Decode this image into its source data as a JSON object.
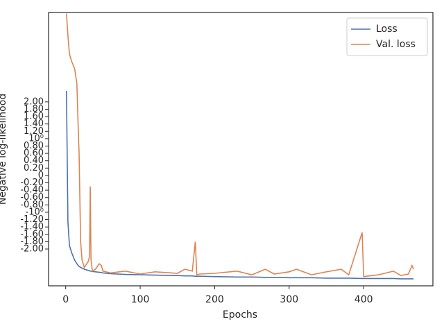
{
  "chart_data": {
    "type": "line",
    "xlabel": "Epochs",
    "ylabel": "Negative log-likelihood",
    "x": [
      1,
      3,
      5,
      8,
      12,
      15,
      17,
      18,
      20,
      22,
      25,
      30,
      32,
      33,
      34,
      36,
      40,
      45,
      48,
      50,
      60,
      80,
      100,
      120,
      150,
      160,
      170,
      174,
      176,
      180,
      200,
      230,
      250,
      268,
      280,
      300,
      310,
      330,
      350,
      370,
      380,
      398,
      400,
      420,
      440,
      450,
      460,
      465,
      467
    ],
    "series": [
      {
        "name": "Loss",
        "color": "#4c72b0",
        "values": [
          2.3,
          -1.26,
          -1.9,
          -2.1,
          -2.3,
          -2.4,
          -2.45,
          -2.47,
          -2.5,
          -2.52,
          -2.55,
          -2.58,
          -2.59,
          -2.6,
          -2.6,
          -2.61,
          -2.62,
          -2.63,
          -2.64,
          -2.65,
          -2.67,
          -2.69,
          -2.7,
          -2.71,
          -2.72,
          -2.73,
          -2.73,
          -2.74,
          -2.74,
          -2.74,
          -2.75,
          -2.76,
          -2.76,
          -2.77,
          -2.77,
          -2.78,
          -2.78,
          -2.78,
          -2.79,
          -2.79,
          -2.79,
          -2.8,
          -2.8,
          -2.8,
          -2.8,
          -2.81,
          -2.81,
          -2.81,
          -2.81
        ]
      },
      {
        "name": "Val. loss",
        "color": "#dd8452",
        "values": [
          4.4,
          3.8,
          3.3,
          3.1,
          2.9,
          2.5,
          1.2,
          0.6,
          -1.8,
          -2.3,
          -2.5,
          -2.35,
          -2.2,
          -0.3,
          -2.3,
          -2.6,
          -2.55,
          -2.4,
          -2.45,
          -2.6,
          -2.65,
          -2.6,
          -2.68,
          -2.62,
          -2.66,
          -2.55,
          -2.6,
          -1.8,
          -2.7,
          -2.68,
          -2.66,
          -2.6,
          -2.7,
          -2.55,
          -2.68,
          -2.62,
          -2.55,
          -2.7,
          -2.62,
          -2.55,
          -2.7,
          -1.55,
          -2.75,
          -2.7,
          -2.6,
          -2.72,
          -2.68,
          -2.45,
          -2.55
        ]
      }
    ],
    "xlim": [
      -23,
      493
    ],
    "ylim": [
      -3.0,
      4.43
    ],
    "xticks": [
      0,
      100,
      200,
      300,
      400
    ],
    "yticks": [
      {
        "value": -2,
        "label": "-2.00"
      },
      {
        "value": -1.8,
        "label": "-1.80"
      },
      {
        "value": -1.6,
        "label": "-1.60"
      },
      {
        "value": -1.4,
        "label": "-1.40"
      },
      {
        "value": -1.2,
        "label": "-1.20"
      },
      {
        "value": -1,
        "label": "-10⁰"
      },
      {
        "value": -0.8,
        "label": "-0.80"
      },
      {
        "value": -0.6,
        "label": "-0.60"
      },
      {
        "value": -0.4,
        "label": "-0.40"
      },
      {
        "value": -0.2,
        "label": "-0.20"
      },
      0,
      {
        "value": 0.2,
        "label": "0.20"
      },
      {
        "value": 0.4,
        "label": "0.40"
      },
      {
        "value": 0.6,
        "label": "0.60"
      },
      {
        "value": 0.8,
        "label": "0.80"
      },
      {
        "value": 1,
        "label": "10⁰"
      },
      {
        "value": 1.2,
        "label": "1.20"
      },
      {
        "value": 1.4,
        "label": "1.40"
      },
      {
        "value": 1.6,
        "label": "1.60"
      },
      {
        "value": 1.8,
        "label": "1.80"
      },
      {
        "value": 2,
        "label": "2.00"
      }
    ],
    "legend": "upper right"
  }
}
